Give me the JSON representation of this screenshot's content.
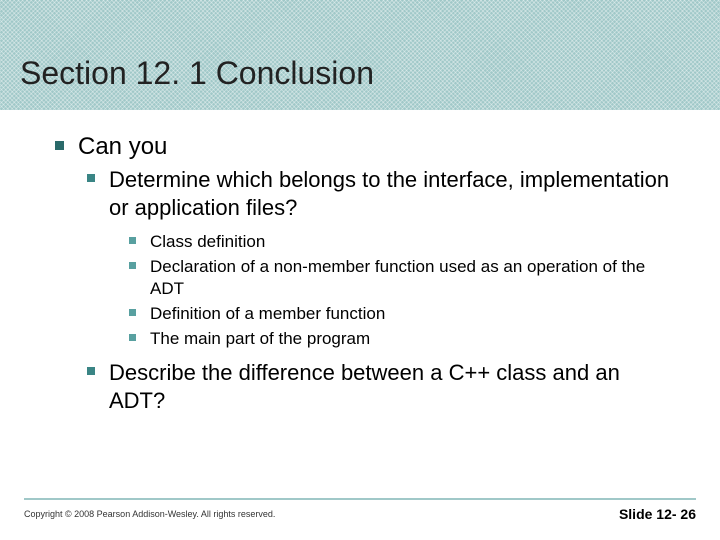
{
  "title": "Section 12. 1 Conclusion",
  "level1": "Can you",
  "level2a": "Determine which belongs to the interface, implementation or application files?",
  "level3": [
    "Class definition",
    "Declaration of a non-member function used as an operation of the ADT",
    "Definition of a member function",
    "The main part of the program"
  ],
  "level2b": "Describe the difference between a C++ class and an ADT?",
  "copyright": "Copyright © 2008 Pearson Addison-Wesley.  All rights reserved.",
  "slide": "Slide 12- 26",
  "colors": {
    "band": "#a0c8c8",
    "bullet1": "#2a6a6a",
    "bullet2": "#3a8585",
    "bullet3": "#58a0a0"
  }
}
